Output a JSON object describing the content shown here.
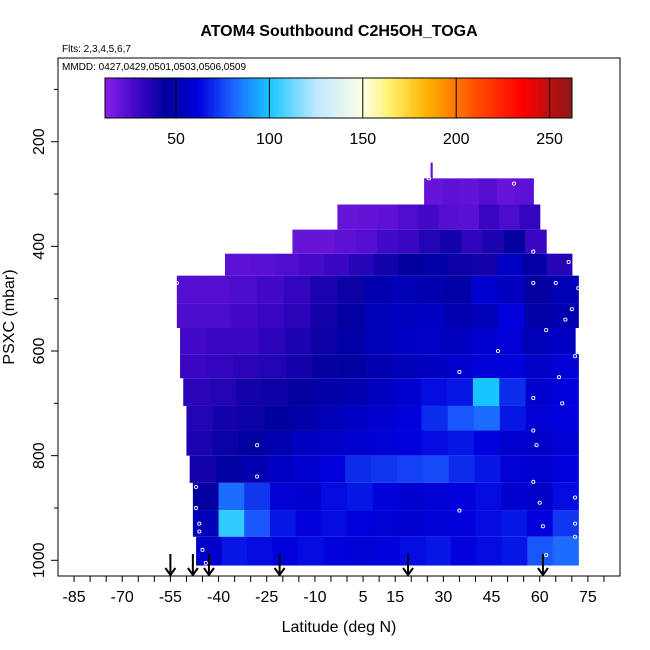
{
  "chart_data": {
    "type": "heatmap",
    "title": "ATOM4 Southbound C2H5OH_TOGA",
    "flights_note": "Flts: 2,3,4,5,6,7",
    "dates_note": "MMDD: 0427,0429,0501,0503,0506,0509",
    "xlabel": "Latitude (deg N)",
    "ylabel": "PSXC (mbar)",
    "xlim": [
      -90,
      85
    ],
    "ylim": [
      1030,
      40
    ],
    "x_ticks_minor_step": 5,
    "x_tick_labels": [
      -85,
      -70,
      -55,
      -40,
      -25,
      -10,
      5,
      15,
      30,
      45,
      60,
      75
    ],
    "y_ticks": [
      200,
      400,
      600,
      800,
      1000
    ],
    "colorbar": {
      "range": [
        12,
        262
      ],
      "ticks": [
        50,
        100,
        150,
        200,
        250
      ],
      "stops": [
        {
          "v": 12,
          "c": "#8b1fe8"
        },
        {
          "v": 30,
          "c": "#3a06c4"
        },
        {
          "v": 45,
          "c": "#00009c"
        },
        {
          "v": 62,
          "c": "#0000dd"
        },
        {
          "v": 80,
          "c": "#1c62ff"
        },
        {
          "v": 100,
          "c": "#16c6ff"
        },
        {
          "v": 125,
          "c": "#bfe8ff"
        },
        {
          "v": 150,
          "c": "#ffffe6"
        },
        {
          "v": 165,
          "c": "#fff06a"
        },
        {
          "v": 185,
          "c": "#ffb000"
        },
        {
          "v": 210,
          "c": "#ff5000"
        },
        {
          "v": 235,
          "c": "#ff0000"
        },
        {
          "v": 262,
          "c": "#8b1a1a"
        }
      ]
    },
    "profile_latitudes": [
      -55,
      -48,
      -43,
      -21,
      19,
      61
    ],
    "bins": [
      {
        "p": [
          240,
          270
        ],
        "lat": [
          26,
          26.5
        ],
        "v": [
          20
        ]
      },
      {
        "p": [
          270,
          320
        ],
        "lat": [
          24,
          58
        ],
        "v": [
          20,
          22,
          21,
          24,
          20,
          22
        ]
      },
      {
        "p": [
          320,
          368
        ],
        "lat": [
          -3,
          60
        ],
        "v": [
          20,
          21,
          22,
          25,
          28,
          24,
          23,
          30,
          26,
          32
        ]
      },
      {
        "p": [
          368,
          414
        ],
        "lat": [
          -17,
          62
        ],
        "v": [
          20,
          20,
          22,
          24,
          28,
          30,
          36,
          40,
          33,
          38,
          44,
          30
        ]
      },
      {
        "p": [
          414,
          456
        ],
        "lat": [
          -38,
          70
        ],
        "v": [
          22,
          23,
          25,
          27,
          30,
          35,
          40,
          45,
          48,
          42,
          40,
          55,
          47,
          35
        ]
      },
      {
        "p": [
          456,
          510
        ],
        "lat": [
          -53,
          72
        ],
        "v": [
          24,
          24,
          26,
          28,
          32,
          38,
          42,
          50,
          52,
          50,
          48,
          58,
          54,
          44,
          52
        ]
      },
      {
        "p": [
          510,
          556
        ],
        "lat": [
          -53,
          72
        ],
        "v": [
          26,
          26,
          28,
          30,
          34,
          40,
          46,
          52,
          54,
          55,
          50,
          52,
          62,
          48,
          50
        ]
      },
      {
        "p": [
          556,
          606
        ],
        "lat": [
          -52,
          71
        ],
        "v": [
          28,
          30,
          30,
          34,
          38,
          42,
          48,
          52,
          55,
          56,
          54,
          58,
          60,
          52,
          55
        ]
      },
      {
        "p": [
          606,
          652
        ],
        "lat": [
          -52,
          72
        ],
        "v": [
          30,
          32,
          34,
          36,
          40,
          44,
          46,
          50,
          52,
          54,
          58,
          60,
          62,
          56,
          60
        ]
      },
      {
        "p": [
          652,
          705
        ],
        "lat": [
          -51,
          72
        ],
        "v": [
          34,
          36,
          40,
          42,
          44,
          48,
          50,
          54,
          58,
          64,
          66,
          100,
          70,
          58,
          62
        ]
      },
      {
        "p": [
          705,
          752
        ],
        "lat": [
          -50,
          72
        ],
        "v": [
          36,
          40,
          42,
          45,
          48,
          52,
          55,
          58,
          62,
          70,
          78,
          82,
          66,
          60,
          62
        ]
      },
      {
        "p": [
          752,
          800
        ],
        "lat": [
          -50,
          72
        ],
        "v": [
          38,
          42,
          46,
          50,
          54,
          56,
          58,
          60,
          62,
          64,
          66,
          62,
          58,
          56,
          60
        ]
      },
      {
        "p": [
          800,
          852
        ],
        "lat": [
          -49,
          72
        ],
        "v": [
          40,
          46,
          50,
          55,
          58,
          62,
          70,
          72,
          74,
          76,
          70,
          66,
          60,
          58,
          62
        ]
      },
      {
        "p": [
          852,
          904
        ],
        "lat": [
          -48,
          72
        ],
        "v": [
          44,
          82,
          72,
          60,
          58,
          64,
          66,
          62,
          58,
          60,
          62,
          64,
          58,
          56,
          64
        ]
      },
      {
        "p": [
          904,
          955
        ],
        "lat": [
          -48,
          72
        ],
        "v": [
          52,
          104,
          78,
          66,
          62,
          64,
          62,
          60,
          58,
          60,
          62,
          64,
          66,
          62,
          72
        ]
      },
      {
        "p": [
          955,
          1010
        ],
        "lat": [
          -47,
          72
        ],
        "v": [
          56,
          66,
          64,
          62,
          64,
          62,
          60,
          62,
          64,
          66,
          62,
          64,
          66,
          78,
          82
        ]
      }
    ],
    "markers": [
      [
        -47,
        860
      ],
      [
        -46,
        930
      ],
      [
        -45,
        980
      ],
      [
        -44,
        1005
      ],
      [
        -47,
        900
      ],
      [
        -46,
        945
      ],
      [
        -28,
        840
      ],
      [
        -28,
        780
      ],
      [
        35,
        905
      ],
      [
        35,
        640
      ],
      [
        47,
        600
      ],
      [
        58,
        850
      ],
      [
        58,
        752
      ],
      [
        59,
        780
      ],
      [
        58,
        690
      ],
      [
        62,
        560
      ],
      [
        65,
        470
      ],
      [
        66,
        650
      ],
      [
        67,
        700
      ],
      [
        68,
        540
      ],
      [
        69,
        430
      ],
      [
        70,
        520
      ],
      [
        71,
        880
      ],
      [
        71,
        930
      ],
      [
        71,
        955
      ],
      [
        72,
        480
      ],
      [
        71,
        610
      ],
      [
        60,
        890
      ],
      [
        61,
        935
      ],
      [
        62,
        990
      ],
      [
        66,
        380
      ],
      [
        58,
        470
      ],
      [
        52,
        280
      ],
      [
        58,
        410
      ],
      [
        -53,
        470
      ],
      [
        25.5,
        270
      ]
    ]
  }
}
